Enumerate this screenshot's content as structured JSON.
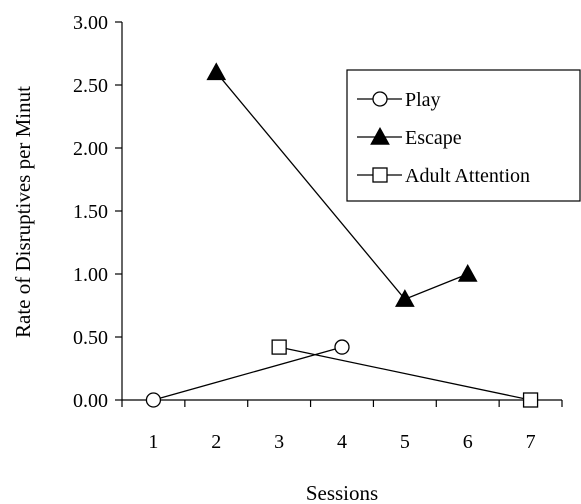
{
  "chart_data": {
    "type": "line",
    "title": "",
    "xlabel": "Sessions",
    "ylabel": "Rate of Disruptives per Minut",
    "xlim": [
      0.5,
      7.5
    ],
    "ylim": [
      0,
      3
    ],
    "x_ticks": [
      "1",
      "2",
      "3",
      "4",
      "5",
      "6",
      "7"
    ],
    "y_ticks": [
      "0.00",
      "0.50",
      "1.00",
      "1.50",
      "2.00",
      "2.50",
      "3.00"
    ],
    "grid": false,
    "legend_position": "right",
    "series": [
      {
        "name": "Play",
        "marker": "circle-open",
        "points": [
          {
            "x": 1,
            "y": 0.0
          },
          {
            "x": 4,
            "y": 0.42
          }
        ]
      },
      {
        "name": "Escape",
        "marker": "triangle-filled",
        "points": [
          {
            "x": 2,
            "y": 2.6
          },
          {
            "x": 5,
            "y": 0.8
          },
          {
            "x": 6,
            "y": 1.0
          }
        ]
      },
      {
        "name": "Adult Attention",
        "marker": "square-open",
        "points": [
          {
            "x": 3,
            "y": 0.42
          },
          {
            "x": 7,
            "y": 0.0
          }
        ]
      }
    ]
  }
}
